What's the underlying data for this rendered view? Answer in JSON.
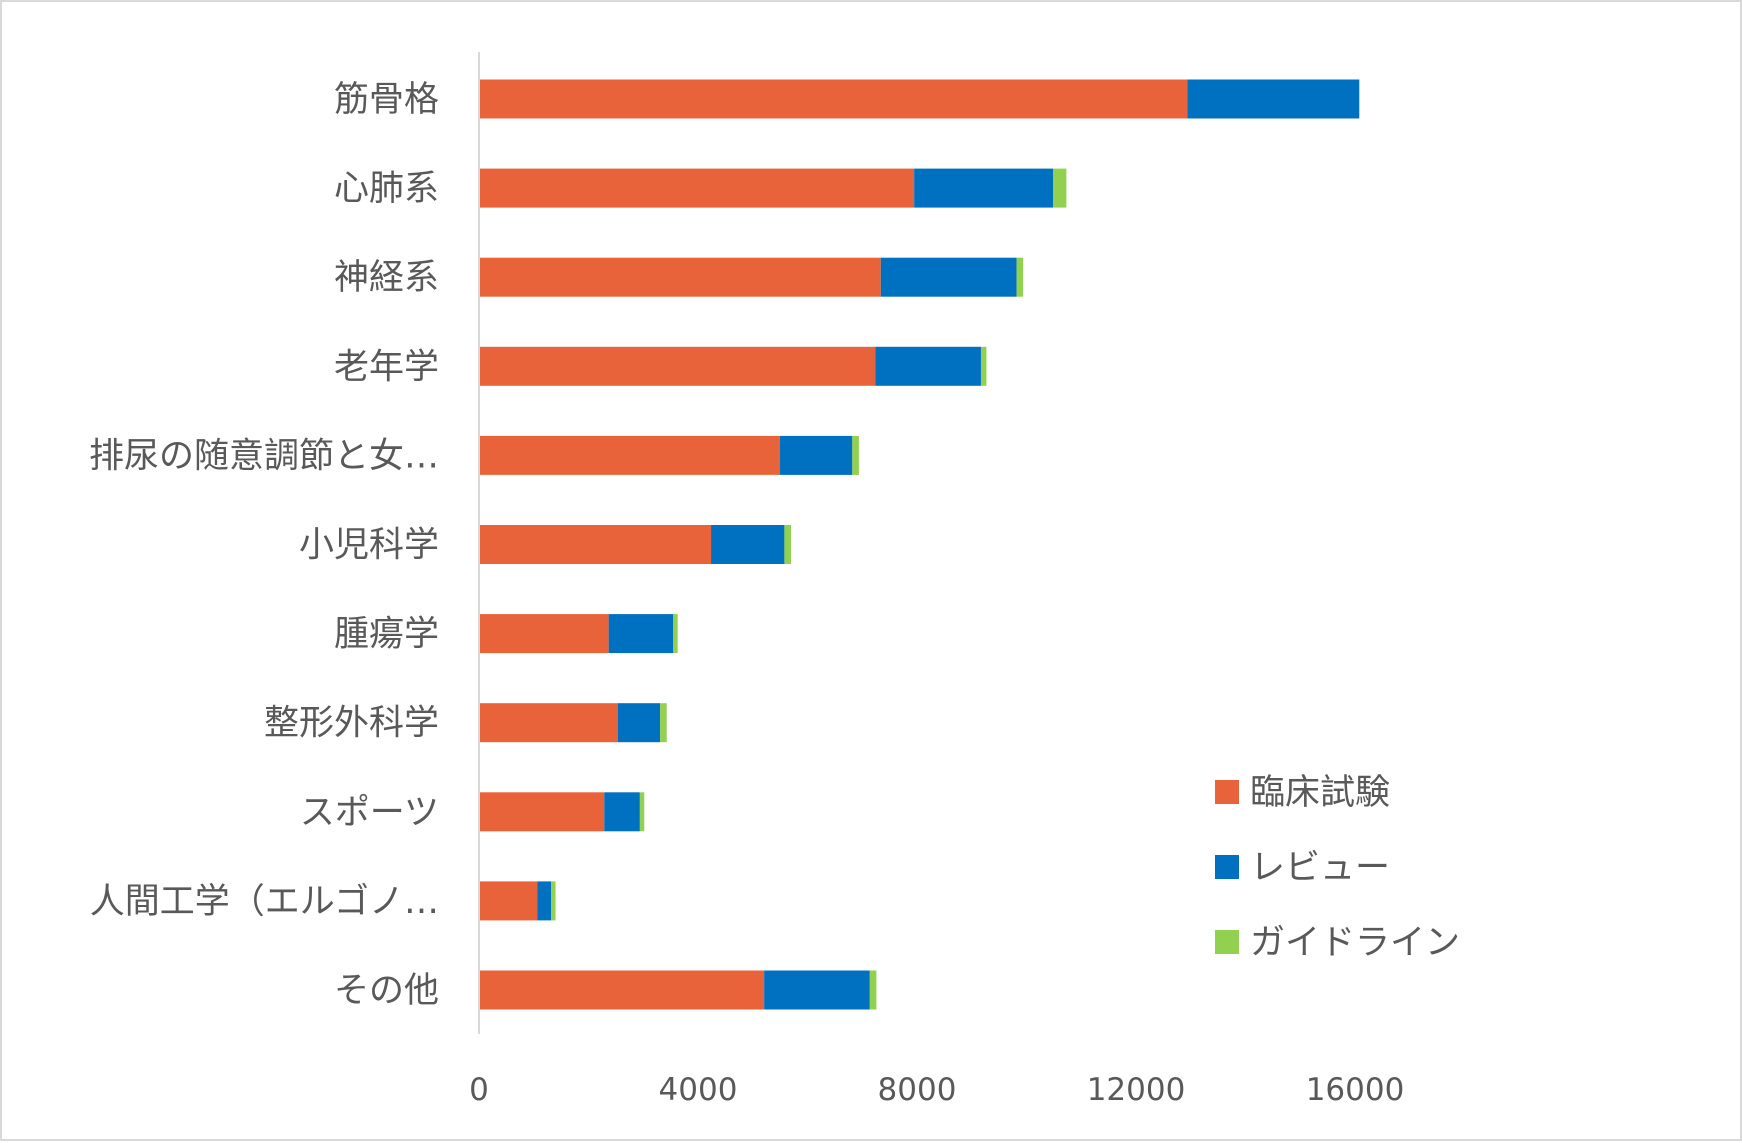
{
  "chart_data": {
    "type": "bar",
    "orientation": "horizontal",
    "stacked": true,
    "title": "",
    "xlabel": "",
    "ylabel": "",
    "xlim": [
      0,
      16000
    ],
    "x_ticks": [
      "0",
      "4000",
      "8000",
      "12000",
      "16000"
    ],
    "grid": false,
    "legend_position": "right",
    "categories": [
      "筋骨格",
      "心肺系",
      "神経系",
      "老年学",
      "排尿の随意調節と女…",
      "小児科学",
      "腫瘍学",
      "整形外科学",
      "スポーツ",
      "人間工学（エルゴノ…",
      "その他"
    ],
    "series": [
      {
        "name": "臨床試験",
        "color": "#E86339",
        "values": [
          12920,
          7930,
          7320,
          7220,
          5480,
          4220,
          2350,
          2520,
          2270,
          1050,
          5190
        ]
      },
      {
        "name": "レビュー",
        "color": "#0070C0",
        "values": [
          3140,
          2540,
          2480,
          1930,
          1320,
          1340,
          1180,
          770,
          650,
          250,
          1930
        ]
      },
      {
        "name": "ガイドライン",
        "color": "#92D050",
        "values": [
          0,
          240,
          120,
          100,
          120,
          120,
          80,
          120,
          80,
          80,
          120
        ]
      }
    ]
  }
}
